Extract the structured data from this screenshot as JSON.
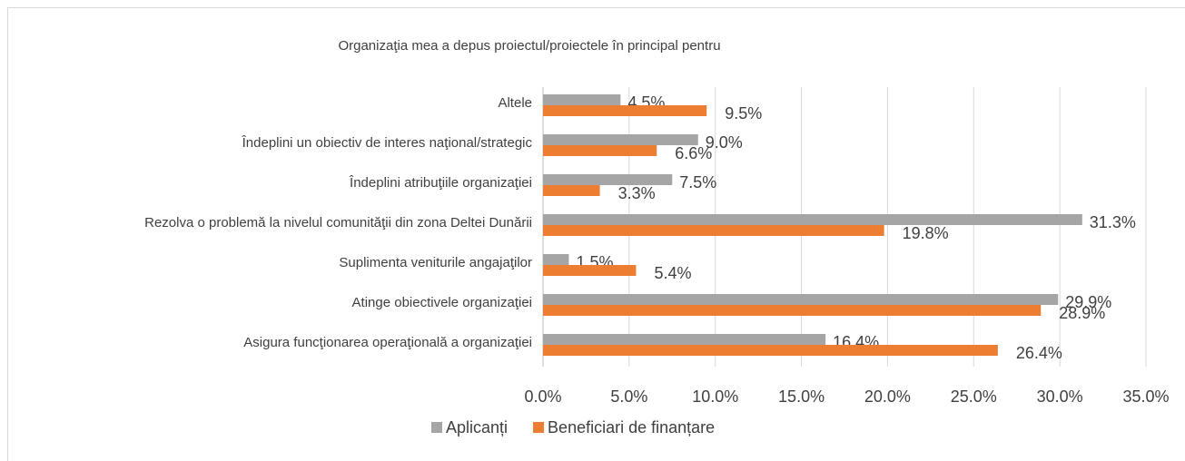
{
  "chart_data": {
    "type": "barh",
    "title": "Organizaţia mea a depus proiectul/proiectele în principal pentru",
    "categories": [
      "Altele",
      "Îndeplini un obiectiv de interes naţional/strategic",
      "Îndeplini atribuţiile organizaţiei",
      "Rezolva o problemă la nivelul comunităţii din zona Deltei Dunării",
      "Suplimenta veniturile angajaţilor",
      "Atinge obiectivele organizaţiei",
      "Asigura funcţionarea operaţională a organizaţiei"
    ],
    "series": [
      {
        "name": "Aplicanți",
        "color": "#a5a5a5",
        "values": [
          4.5,
          9.0,
          7.5,
          31.3,
          1.5,
          29.9,
          16.4
        ],
        "value_labels": [
          "4.5%",
          "9.0%",
          "7.5%",
          "31.3%",
          "1.5%",
          "29.9%",
          "16.4%"
        ]
      },
      {
        "name": "Beneficiari de finanțare",
        "color": "#ed7d31",
        "values": [
          9.5,
          6.6,
          3.3,
          19.8,
          5.4,
          28.9,
          26.4
        ],
        "value_labels": [
          "9.5%",
          "6.6%",
          "3.3%",
          "19.8%",
          "5.4%",
          "28.9%",
          "26.4%"
        ]
      }
    ],
    "xlim": [
      0,
      35
    ],
    "xticks": [
      {
        "value": 0,
        "label": "0.0%"
      },
      {
        "value": 5,
        "label": "5.0%"
      },
      {
        "value": 10,
        "label": "10.0%"
      },
      {
        "value": 15,
        "label": "15.0%"
      },
      {
        "value": 20,
        "label": "20.0%"
      },
      {
        "value": 25,
        "label": "25.0%"
      },
      {
        "value": 30,
        "label": "30.0%"
      },
      {
        "value": 35,
        "label": "35.0%"
      }
    ],
    "grid": true,
    "legend": "bottom"
  }
}
